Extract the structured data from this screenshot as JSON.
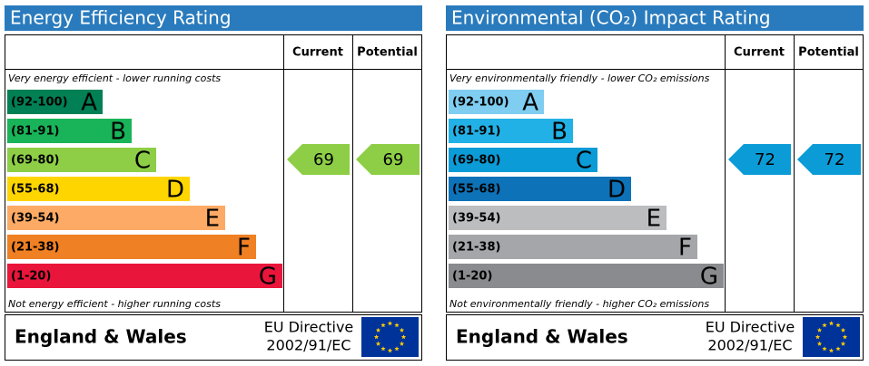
{
  "panels": [
    {
      "title": "Energy Efficiency Rating",
      "columns": [
        "Current",
        "Potential"
      ],
      "top_note": "Very energy efficient - lower running costs",
      "bottom_note": "Not energy efficient - higher running costs",
      "bands": [
        {
          "range": "(92-100)",
          "letter": "A",
          "color": "#008054"
        },
        {
          "range": "(81-91)",
          "letter": "B",
          "color": "#19b459"
        },
        {
          "range": "(69-80)",
          "letter": "C",
          "color": "#8dce46"
        },
        {
          "range": "(55-68)",
          "letter": "D",
          "color": "#ffd500"
        },
        {
          "range": "(39-54)",
          "letter": "E",
          "color": "#fcaa65"
        },
        {
          "range": "(21-38)",
          "letter": "F",
          "color": "#ef8023"
        },
        {
          "range": "(1-20)",
          "letter": "G",
          "color": "#e9153b"
        }
      ],
      "current": 69,
      "potential": 69,
      "footer": {
        "region": "England & Wales",
        "directive": "EU Directive",
        "directive_number": "2002/91/EC"
      }
    },
    {
      "title": "Environmental (CO₂) Impact Rating",
      "columns": [
        "Current",
        "Potential"
      ],
      "top_note": "Very environmentally friendly - lower CO₂ emissions",
      "bottom_note": "Not environmentally friendly - higher CO₂ emissions",
      "bands": [
        {
          "range": "(92-100)",
          "letter": "A",
          "color": "#7fcdf1"
        },
        {
          "range": "(81-91)",
          "letter": "B",
          "color": "#22b1e6"
        },
        {
          "range": "(69-80)",
          "letter": "C",
          "color": "#0b9bd6"
        },
        {
          "range": "(55-68)",
          "letter": "D",
          "color": "#0d72b8"
        },
        {
          "range": "(39-54)",
          "letter": "E",
          "color": "#bbbdbf"
        },
        {
          "range": "(21-38)",
          "letter": "F",
          "color": "#a4a6a9"
        },
        {
          "range": "(1-20)",
          "letter": "G",
          "color": "#898b8e"
        }
      ],
      "current": 72,
      "potential": 72,
      "footer": {
        "region": "England & Wales",
        "directive": "EU Directive",
        "directive_number": "2002/91/EC"
      }
    }
  ]
}
